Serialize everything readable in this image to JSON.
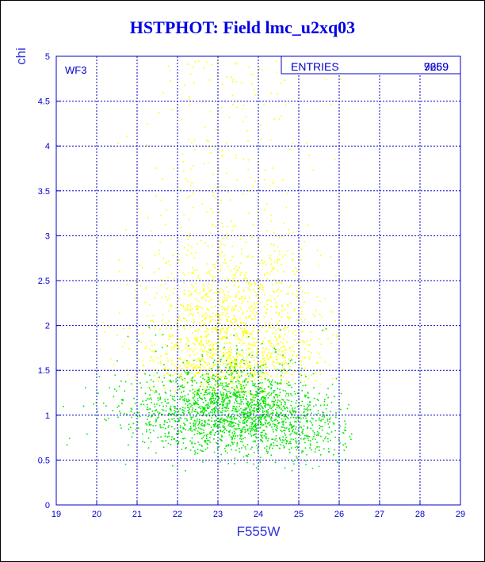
{
  "colors": {
    "title": "#0000e6",
    "axis": "#0000cc",
    "grid": "#0000cc",
    "green": "#00e600",
    "yellow": "#ffff00"
  },
  "chart_data": {
    "type": "scatter",
    "title": "HSTPHOT: Field lmc_u2xq03",
    "xlabel": "F555W",
    "ylabel": "chi",
    "panel_label": "WF3",
    "xlim": [
      19,
      29
    ],
    "ylim": [
      0,
      5
    ],
    "x_ticks": [
      "19",
      "20",
      "21",
      "22",
      "23",
      "24",
      "25",
      "26",
      "27",
      "28",
      "29"
    ],
    "y_ticks": [
      "0",
      "0.5",
      "1",
      "1.5",
      "2",
      "2.5",
      "3",
      "3.5",
      "4",
      "4.5",
      "5"
    ],
    "grid": true,
    "stats_box": {
      "label": "ENTRIES",
      "values": [
        "7269",
        "9659"
      ]
    },
    "series": [
      {
        "color": "green",
        "count": 9659,
        "x_range": [
          19,
          26.3
        ],
        "y_range": [
          0.3,
          2.0
        ],
        "density_peak": {
          "x": 23.5,
          "y": 1.0
        }
      },
      {
        "color": "yellow",
        "count": 7269,
        "x_range": [
          19.8,
          26.3
        ],
        "y_range": [
          1.0,
          5.0
        ],
        "density_peak": {
          "x": 23.3,
          "y": 1.8
        }
      }
    ]
  }
}
